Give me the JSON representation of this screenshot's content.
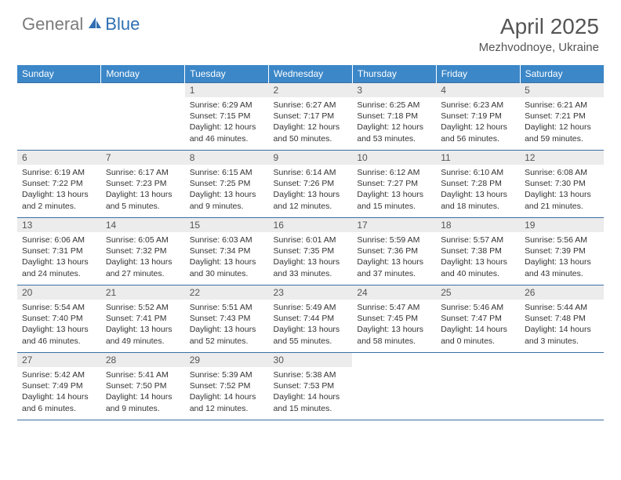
{
  "logo": {
    "gray": "General",
    "blue": "Blue"
  },
  "title": "April 2025",
  "location": "Mezhvodnoye, Ukraine",
  "colors": {
    "header_bg": "#3b87c8",
    "header_text": "#ffffff",
    "daynum_bg": "#ececec",
    "border": "#3b6fa3",
    "logo_gray": "#7b7b7b",
    "logo_blue": "#2f6fb3"
  },
  "columns": [
    "Sunday",
    "Monday",
    "Tuesday",
    "Wednesday",
    "Thursday",
    "Friday",
    "Saturday"
  ],
  "weeks": [
    [
      {
        "n": "",
        "sr": "",
        "ss": "",
        "d1": "",
        "d2": ""
      },
      {
        "n": "",
        "sr": "",
        "ss": "",
        "d1": "",
        "d2": ""
      },
      {
        "n": "1",
        "sr": "Sunrise: 6:29 AM",
        "ss": "Sunset: 7:15 PM",
        "d1": "Daylight: 12 hours",
        "d2": "and 46 minutes."
      },
      {
        "n": "2",
        "sr": "Sunrise: 6:27 AM",
        "ss": "Sunset: 7:17 PM",
        "d1": "Daylight: 12 hours",
        "d2": "and 50 minutes."
      },
      {
        "n": "3",
        "sr": "Sunrise: 6:25 AM",
        "ss": "Sunset: 7:18 PM",
        "d1": "Daylight: 12 hours",
        "d2": "and 53 minutes."
      },
      {
        "n": "4",
        "sr": "Sunrise: 6:23 AM",
        "ss": "Sunset: 7:19 PM",
        "d1": "Daylight: 12 hours",
        "d2": "and 56 minutes."
      },
      {
        "n": "5",
        "sr": "Sunrise: 6:21 AM",
        "ss": "Sunset: 7:21 PM",
        "d1": "Daylight: 12 hours",
        "d2": "and 59 minutes."
      }
    ],
    [
      {
        "n": "6",
        "sr": "Sunrise: 6:19 AM",
        "ss": "Sunset: 7:22 PM",
        "d1": "Daylight: 13 hours",
        "d2": "and 2 minutes."
      },
      {
        "n": "7",
        "sr": "Sunrise: 6:17 AM",
        "ss": "Sunset: 7:23 PM",
        "d1": "Daylight: 13 hours",
        "d2": "and 5 minutes."
      },
      {
        "n": "8",
        "sr": "Sunrise: 6:15 AM",
        "ss": "Sunset: 7:25 PM",
        "d1": "Daylight: 13 hours",
        "d2": "and 9 minutes."
      },
      {
        "n": "9",
        "sr": "Sunrise: 6:14 AM",
        "ss": "Sunset: 7:26 PM",
        "d1": "Daylight: 13 hours",
        "d2": "and 12 minutes."
      },
      {
        "n": "10",
        "sr": "Sunrise: 6:12 AM",
        "ss": "Sunset: 7:27 PM",
        "d1": "Daylight: 13 hours",
        "d2": "and 15 minutes."
      },
      {
        "n": "11",
        "sr": "Sunrise: 6:10 AM",
        "ss": "Sunset: 7:28 PM",
        "d1": "Daylight: 13 hours",
        "d2": "and 18 minutes."
      },
      {
        "n": "12",
        "sr": "Sunrise: 6:08 AM",
        "ss": "Sunset: 7:30 PM",
        "d1": "Daylight: 13 hours",
        "d2": "and 21 minutes."
      }
    ],
    [
      {
        "n": "13",
        "sr": "Sunrise: 6:06 AM",
        "ss": "Sunset: 7:31 PM",
        "d1": "Daylight: 13 hours",
        "d2": "and 24 minutes."
      },
      {
        "n": "14",
        "sr": "Sunrise: 6:05 AM",
        "ss": "Sunset: 7:32 PM",
        "d1": "Daylight: 13 hours",
        "d2": "and 27 minutes."
      },
      {
        "n": "15",
        "sr": "Sunrise: 6:03 AM",
        "ss": "Sunset: 7:34 PM",
        "d1": "Daylight: 13 hours",
        "d2": "and 30 minutes."
      },
      {
        "n": "16",
        "sr": "Sunrise: 6:01 AM",
        "ss": "Sunset: 7:35 PM",
        "d1": "Daylight: 13 hours",
        "d2": "and 33 minutes."
      },
      {
        "n": "17",
        "sr": "Sunrise: 5:59 AM",
        "ss": "Sunset: 7:36 PM",
        "d1": "Daylight: 13 hours",
        "d2": "and 37 minutes."
      },
      {
        "n": "18",
        "sr": "Sunrise: 5:57 AM",
        "ss": "Sunset: 7:38 PM",
        "d1": "Daylight: 13 hours",
        "d2": "and 40 minutes."
      },
      {
        "n": "19",
        "sr": "Sunrise: 5:56 AM",
        "ss": "Sunset: 7:39 PM",
        "d1": "Daylight: 13 hours",
        "d2": "and 43 minutes."
      }
    ],
    [
      {
        "n": "20",
        "sr": "Sunrise: 5:54 AM",
        "ss": "Sunset: 7:40 PM",
        "d1": "Daylight: 13 hours",
        "d2": "and 46 minutes."
      },
      {
        "n": "21",
        "sr": "Sunrise: 5:52 AM",
        "ss": "Sunset: 7:41 PM",
        "d1": "Daylight: 13 hours",
        "d2": "and 49 minutes."
      },
      {
        "n": "22",
        "sr": "Sunrise: 5:51 AM",
        "ss": "Sunset: 7:43 PM",
        "d1": "Daylight: 13 hours",
        "d2": "and 52 minutes."
      },
      {
        "n": "23",
        "sr": "Sunrise: 5:49 AM",
        "ss": "Sunset: 7:44 PM",
        "d1": "Daylight: 13 hours",
        "d2": "and 55 minutes."
      },
      {
        "n": "24",
        "sr": "Sunrise: 5:47 AM",
        "ss": "Sunset: 7:45 PM",
        "d1": "Daylight: 13 hours",
        "d2": "and 58 minutes."
      },
      {
        "n": "25",
        "sr": "Sunrise: 5:46 AM",
        "ss": "Sunset: 7:47 PM",
        "d1": "Daylight: 14 hours",
        "d2": "and 0 minutes."
      },
      {
        "n": "26",
        "sr": "Sunrise: 5:44 AM",
        "ss": "Sunset: 7:48 PM",
        "d1": "Daylight: 14 hours",
        "d2": "and 3 minutes."
      }
    ],
    [
      {
        "n": "27",
        "sr": "Sunrise: 5:42 AM",
        "ss": "Sunset: 7:49 PM",
        "d1": "Daylight: 14 hours",
        "d2": "and 6 minutes."
      },
      {
        "n": "28",
        "sr": "Sunrise: 5:41 AM",
        "ss": "Sunset: 7:50 PM",
        "d1": "Daylight: 14 hours",
        "d2": "and 9 minutes."
      },
      {
        "n": "29",
        "sr": "Sunrise: 5:39 AM",
        "ss": "Sunset: 7:52 PM",
        "d1": "Daylight: 14 hours",
        "d2": "and 12 minutes."
      },
      {
        "n": "30",
        "sr": "Sunrise: 5:38 AM",
        "ss": "Sunset: 7:53 PM",
        "d1": "Daylight: 14 hours",
        "d2": "and 15 minutes."
      },
      {
        "n": "",
        "sr": "",
        "ss": "",
        "d1": "",
        "d2": ""
      },
      {
        "n": "",
        "sr": "",
        "ss": "",
        "d1": "",
        "d2": ""
      },
      {
        "n": "",
        "sr": "",
        "ss": "",
        "d1": "",
        "d2": ""
      }
    ]
  ]
}
